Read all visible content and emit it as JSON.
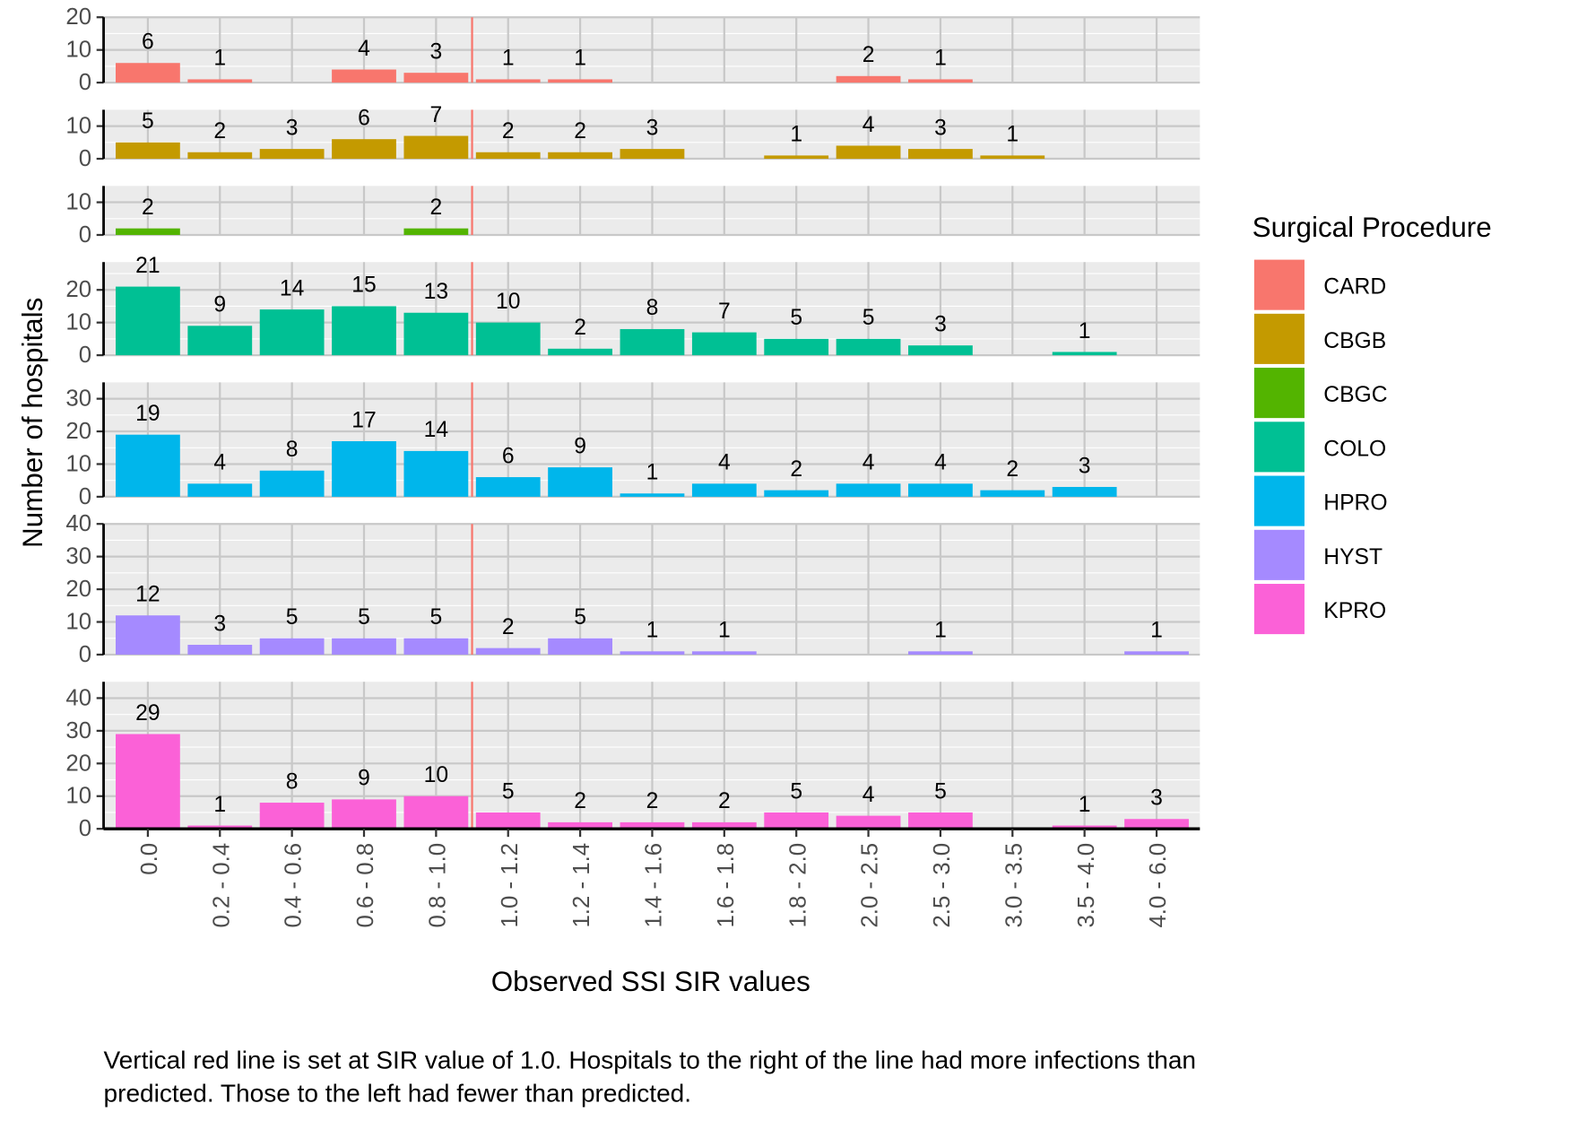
{
  "chart_data": {
    "type": "bar",
    "layout": "faceted vertically by surgical procedure, free y scales",
    "xlabel": "Observed SSI SIR values",
    "ylabel": "Number of hospitals",
    "categories": [
      "0.0",
      "0.2 - 0.4",
      "0.4 - 0.6",
      "0.6 - 0.8",
      "0.8 - 1.0",
      "1.0 - 1.2",
      "1.2 - 1.4",
      "1.4 - 1.6",
      "1.6 - 1.8",
      "1.8 - 2.0",
      "2.0 - 2.5",
      "2.5 - 3.0",
      "3.0 - 3.5",
      "3.5 - 4.0",
      "4.0 - 6.0"
    ],
    "reference_line": {
      "category_boundary_after": "0.8 - 1.0",
      "color": "#F8766D"
    },
    "grid": true,
    "panel_background": "#EBEBEB",
    "legend": {
      "title": "Surgical Procedure",
      "placement": "right"
    },
    "series": [
      {
        "name": "CARD",
        "color": "#F8766D",
        "ylim": [
          0,
          20
        ],
        "yticks": [
          0,
          10,
          20
        ],
        "values": [
          6,
          1,
          null,
          4,
          3,
          1,
          1,
          null,
          null,
          null,
          2,
          1,
          null,
          null,
          null
        ]
      },
      {
        "name": "CBGB",
        "color": "#C49A00",
        "ylim": [
          0,
          15
        ],
        "yticks": [
          0,
          10
        ],
        "values": [
          5,
          2,
          3,
          6,
          7,
          2,
          2,
          3,
          null,
          1,
          4,
          3,
          1,
          null,
          null
        ]
      },
      {
        "name": "CBGC",
        "color": "#53B400",
        "ylim": [
          0,
          15
        ],
        "yticks": [
          0,
          10
        ],
        "values": [
          2,
          null,
          null,
          null,
          2,
          null,
          null,
          null,
          null,
          null,
          null,
          null,
          null,
          null,
          null
        ]
      },
      {
        "name": "COLO",
        "color": "#00C094",
        "ylim": [
          0,
          28.5
        ],
        "yticks": [
          0,
          10,
          20
        ],
        "values": [
          21,
          9,
          14,
          15,
          13,
          10,
          2,
          8,
          7,
          5,
          5,
          3,
          null,
          1,
          null
        ]
      },
      {
        "name": "HPRO",
        "color": "#00B6EB",
        "ylim": [
          0,
          35
        ],
        "yticks": [
          0,
          10,
          20,
          30
        ],
        "values": [
          19,
          4,
          8,
          17,
          14,
          6,
          9,
          1,
          4,
          2,
          4,
          4,
          2,
          3,
          null
        ]
      },
      {
        "name": "HYST",
        "color": "#A58AFF",
        "ylim": [
          0,
          40
        ],
        "yticks": [
          0,
          10,
          20,
          30,
          40
        ],
        "values": [
          12,
          3,
          5,
          5,
          5,
          2,
          5,
          1,
          1,
          null,
          null,
          1,
          null,
          null,
          1
        ]
      },
      {
        "name": "KPRO",
        "color": "#FB61D7",
        "ylim": [
          0,
          45
        ],
        "yticks": [
          0,
          10,
          20,
          30,
          40
        ],
        "values": [
          29,
          1,
          8,
          9,
          10,
          5,
          2,
          2,
          2,
          5,
          4,
          5,
          null,
          1,
          3
        ]
      }
    ]
  },
  "caption": {
    "line1": "Vertical red line is set at SIR value of 1.0.  Hospitals to the right of the line had more infections than",
    "line2": "predicted.  Those to the left had fewer than predicted."
  }
}
